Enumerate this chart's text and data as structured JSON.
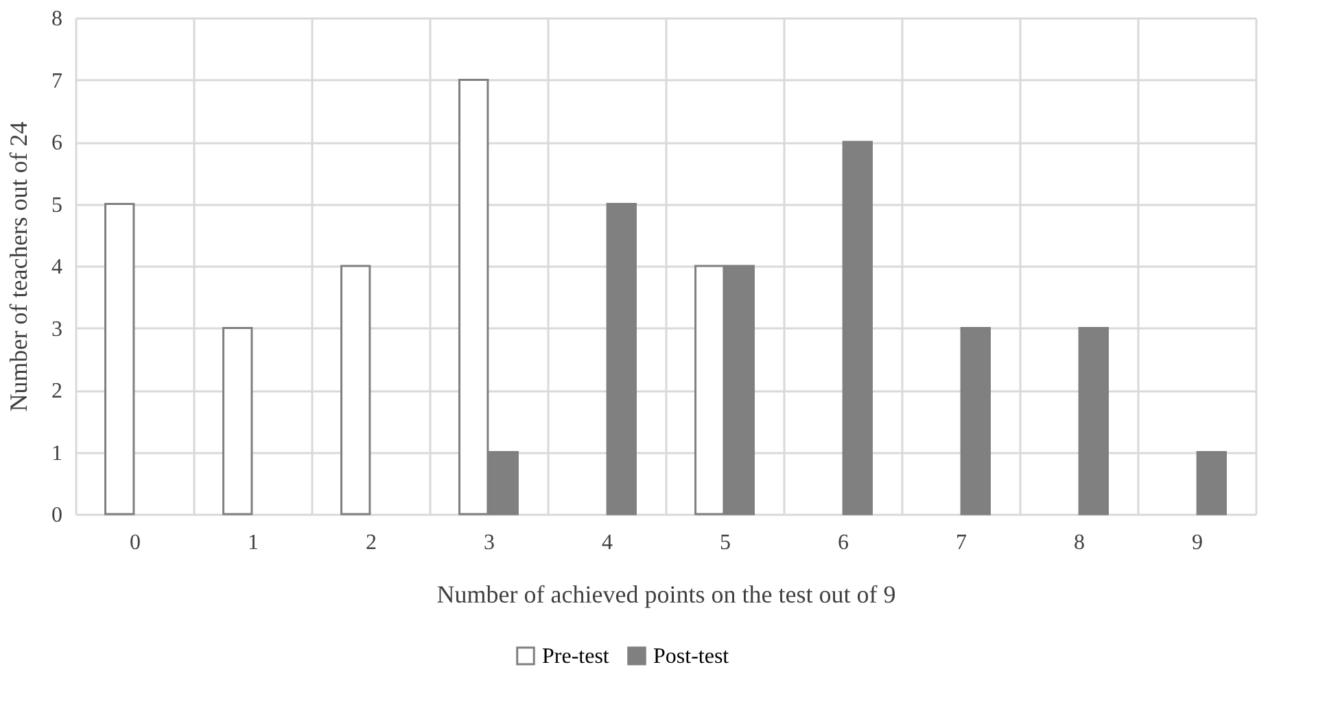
{
  "chart_data": {
    "type": "bar",
    "xlabel": "Number of achieved points on the test out of 9",
    "ylabel": "Number of teachers out of 24",
    "categories": [
      "0",
      "1",
      "2",
      "3",
      "4",
      "5",
      "6",
      "7",
      "8",
      "9"
    ],
    "series": [
      {
        "name": "Pre-test",
        "color": "#ffffff",
        "values": [
          5,
          3,
          4,
          7,
          null,
          4,
          null,
          null,
          null,
          null
        ]
      },
      {
        "name": "Post-test",
        "color": "#808080",
        "values": [
          null,
          null,
          null,
          1,
          5,
          4,
          6,
          3,
          3,
          1
        ]
      }
    ],
    "ylim": [
      0,
      8
    ],
    "yticks": [
      0,
      1,
      2,
      3,
      4,
      5,
      6,
      7,
      8
    ],
    "grid": true,
    "legend": "bottom"
  }
}
